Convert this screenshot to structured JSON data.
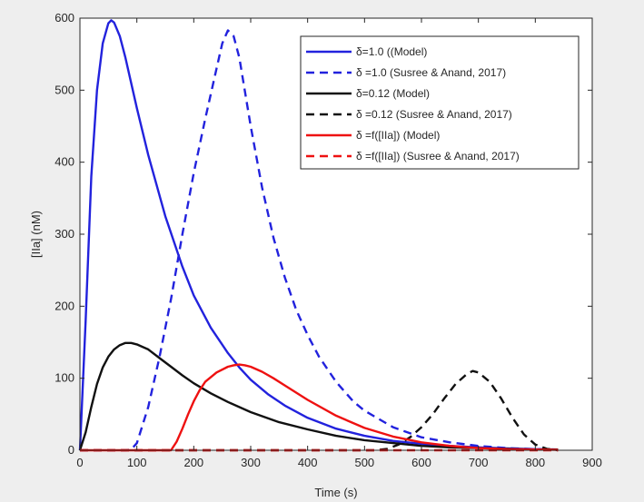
{
  "chart_data": {
    "type": "line",
    "title": "",
    "xlabel": "Time (s)",
    "ylabel": "[IIa] (nM)",
    "xlim": [
      0,
      900
    ],
    "ylim": [
      0,
      600
    ],
    "xticks": [
      "0",
      "100",
      "200",
      "300",
      "400",
      "500",
      "600",
      "700",
      "800",
      "900"
    ],
    "yticks": [
      "0",
      "100",
      "200",
      "300",
      "400",
      "500",
      "600"
    ],
    "grid": false,
    "legend_position": "top-right",
    "series": [
      {
        "name": "δ=1.0 ((Model)",
        "color": "#2222dd",
        "style": "solid",
        "x": [
          0,
          10,
          20,
          30,
          40,
          50,
          55,
          60,
          70,
          80,
          100,
          120,
          150,
          180,
          200,
          230,
          260,
          280,
          300,
          330,
          360,
          400,
          450,
          500,
          550,
          600,
          650,
          700,
          750,
          800,
          840
        ],
        "y": [
          0,
          180,
          380,
          500,
          565,
          593,
          597,
          594,
          575,
          545,
          475,
          410,
          325,
          255,
          215,
          170,
          135,
          115,
          98,
          78,
          62,
          45,
          30,
          20,
          13,
          9,
          6,
          4,
          2.5,
          1.5,
          1
        ]
      },
      {
        "name": "δ =1.0 (Susree & Anand, 2017)",
        "color": "#2222dd",
        "style": "dashed",
        "x": [
          0,
          80,
          90,
          100,
          120,
          140,
          160,
          180,
          200,
          220,
          240,
          250,
          260,
          270,
          280,
          300,
          320,
          340,
          360,
          380,
          400,
          420,
          450,
          480,
          500,
          550,
          600,
          650,
          700,
          750,
          800,
          840
        ],
        "y": [
          0,
          0,
          1,
          10,
          60,
          130,
          210,
          300,
          385,
          460,
          530,
          565,
          583,
          575,
          545,
          450,
          365,
          295,
          240,
          195,
          160,
          130,
          95,
          68,
          55,
          32,
          18,
          11,
          6,
          3,
          1.5,
          1
        ]
      },
      {
        "name": "δ=0.12 (Model)",
        "color": "#111111",
        "style": "solid",
        "x": [
          0,
          10,
          20,
          30,
          40,
          50,
          60,
          70,
          80,
          90,
          100,
          120,
          140,
          160,
          180,
          200,
          230,
          260,
          300,
          350,
          400,
          450,
          500,
          550,
          600,
          650,
          700,
          750,
          800,
          840
        ],
        "y": [
          0,
          25,
          60,
          92,
          115,
          130,
          140,
          146,
          149,
          149,
          147,
          140,
          128,
          116,
          104,
          93,
          79,
          67,
          53,
          39,
          29,
          20,
          14,
          10,
          6,
          4,
          3,
          2,
          1,
          1
        ]
      },
      {
        "name": "δ =0.12 (Susree & Anand, 2017)",
        "color": "#111111",
        "style": "dashed",
        "x": [
          0,
          520,
          540,
          560,
          580,
          600,
          620,
          640,
          660,
          680,
          690,
          700,
          720,
          740,
          760,
          780,
          800,
          820,
          840
        ],
        "y": [
          0,
          0,
          2,
          8,
          18,
          32,
          50,
          72,
          92,
          106,
          110,
          108,
          95,
          72,
          45,
          22,
          8,
          2,
          0
        ]
      },
      {
        "name": "δ =f([IIa]) (Model)",
        "color": "#ee1111",
        "style": "solid",
        "x": [
          0,
          160,
          170,
          180,
          190,
          200,
          210,
          220,
          240,
          260,
          270,
          280,
          290,
          300,
          320,
          340,
          360,
          400,
          450,
          500,
          550,
          600,
          650,
          700,
          750,
          800,
          840
        ],
        "y": [
          0,
          0,
          12,
          30,
          50,
          68,
          83,
          95,
          108,
          116,
          118,
          119,
          118,
          116,
          109,
          100,
          90,
          70,
          48,
          31,
          19,
          11,
          6,
          3,
          1.5,
          1,
          0.5
        ]
      },
      {
        "name": "δ =f([IIa]) (Susree & Anand, 2017)",
        "color": "#ee1111",
        "style": "dashed",
        "x": [
          0,
          840
        ],
        "y": [
          0,
          0
        ]
      }
    ]
  }
}
